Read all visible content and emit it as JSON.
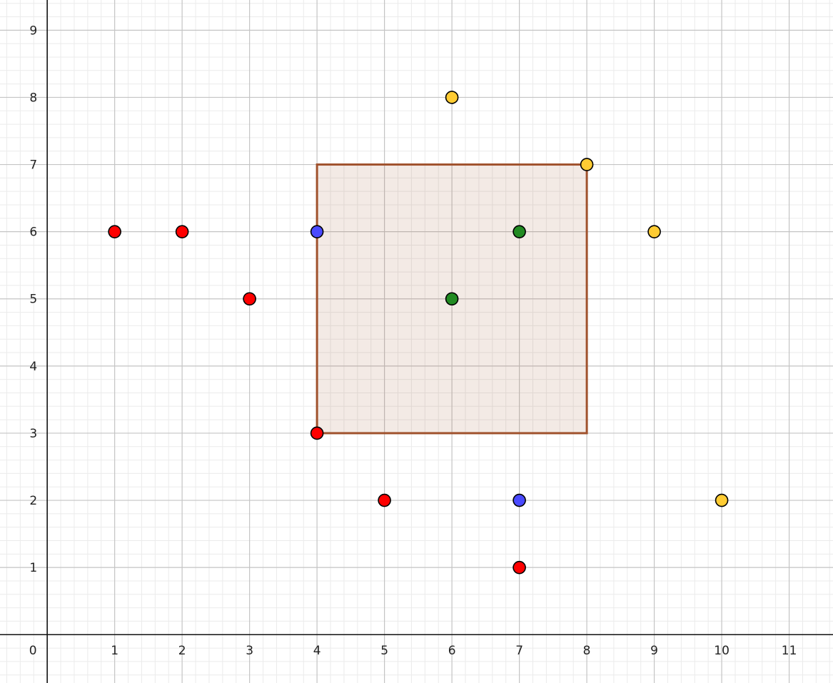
{
  "chart_data": {
    "type": "scatter",
    "xlim": [
      -0.7,
      11.65
    ],
    "ylim": [
      -0.72,
      9.45
    ],
    "grid": true,
    "minor_grid_per_unit": 5,
    "x_ticks": [
      0,
      1,
      2,
      3,
      4,
      5,
      6,
      7,
      8,
      9,
      10,
      11
    ],
    "y_ticks": [
      1,
      2,
      3,
      4,
      5,
      6,
      7,
      8,
      9
    ],
    "origin_label": "0",
    "rectangle": {
      "x": [
        4,
        8
      ],
      "y": [
        3,
        7
      ],
      "stroke": "#a0522d",
      "fill": "#a0522d",
      "fill_opacity": 0.12
    },
    "series": [
      {
        "color": "#ff0000",
        "points": [
          [
            1,
            6
          ],
          [
            2,
            6
          ],
          [
            3,
            5
          ],
          [
            4,
            3
          ],
          [
            5,
            2
          ],
          [
            7,
            1
          ]
        ]
      },
      {
        "color": "#4a4aff",
        "points": [
          [
            4,
            6
          ],
          [
            7,
            2
          ]
        ]
      },
      {
        "color": "#228b22",
        "points": [
          [
            6,
            5
          ],
          [
            7,
            6
          ]
        ]
      },
      {
        "color": "#ffcc33",
        "points": [
          [
            6,
            8
          ],
          [
            8,
            7
          ],
          [
            9,
            6
          ],
          [
            10,
            2
          ]
        ]
      }
    ]
  }
}
